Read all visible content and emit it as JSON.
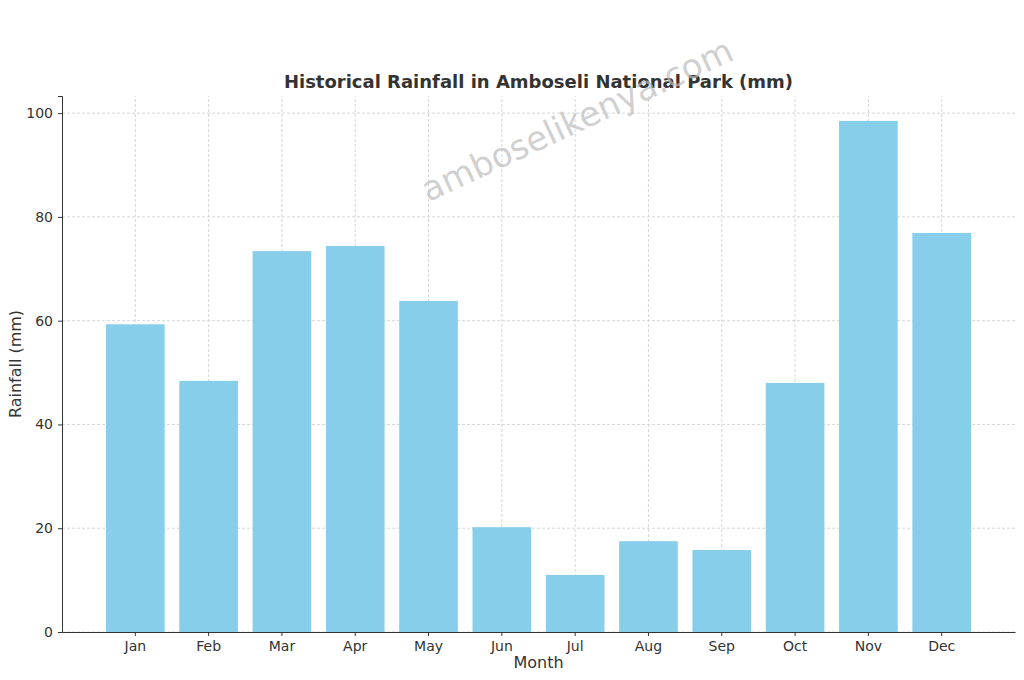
{
  "chart_data": {
    "type": "bar",
    "title": "Historical Rainfall in Amboseli National Park (mm)",
    "x_label": "Month",
    "y_label": "Rainfall (mm)",
    "annotations": [
      "amboselikenya.com"
    ],
    "categories": [
      "Jan",
      "Feb",
      "Mar",
      "Apr",
      "May",
      "Jun",
      "Jul",
      "Aug",
      "Sep",
      "Oct",
      "Nov",
      "Dec"
    ],
    "values": [
      59.3,
      48.4,
      73.4,
      74.4,
      63.8,
      20.2,
      11.0,
      17.5,
      15.8,
      48.0,
      98.5,
      76.9
    ],
    "color": "#87ceeb",
    "ylim": [
      0,
      103.3
    ],
    "yticks": [
      0,
      20,
      40,
      60,
      80,
      100
    ],
    "grid": true
  }
}
